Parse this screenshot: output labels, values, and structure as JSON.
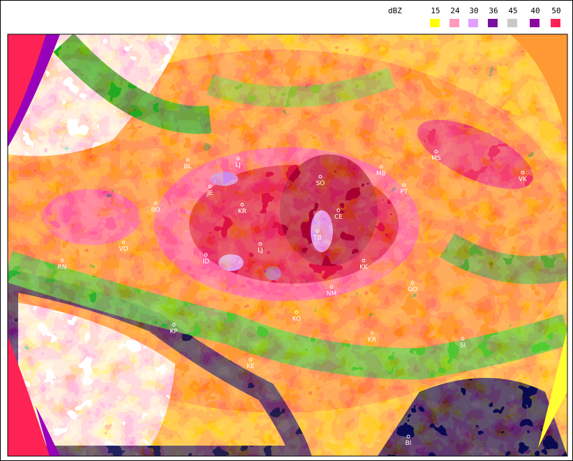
{
  "legend": {
    "unit": "dBZ",
    "entries": [
      {
        "label": "15",
        "color": "#ffff00"
      },
      {
        "label": "24",
        "color": "#ff99bb"
      },
      {
        "label": "30",
        "color": "#e0a0ff"
      },
      {
        "label": "36",
        "color": "#7a0fa0"
      },
      {
        "label": "45",
        "color": "#c8c8c8"
      },
      {
        "label": "40",
        "color": "#8a0aa0"
      },
      {
        "label": "50",
        "color": "#ff2255"
      }
    ]
  },
  "cities": [
    "BL",
    "LJ",
    "SO",
    "MB",
    "MS",
    "VK",
    "JE",
    "CE",
    "KR",
    "TB",
    "BO",
    "VD",
    "RN",
    "ID",
    "LJ",
    "KK",
    "NM",
    "PT",
    "KP",
    "KO",
    "KR",
    "GO",
    "SI",
    "KE",
    "BI"
  ]
}
